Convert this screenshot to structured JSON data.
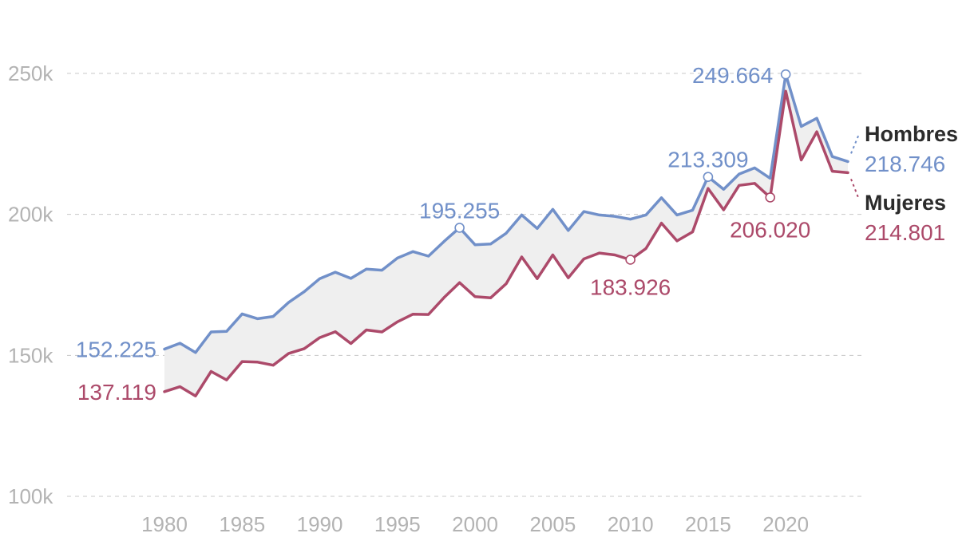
{
  "chart_data": {
    "type": "line",
    "title": "",
    "xlabel": "",
    "ylabel": "",
    "ylim": [
      100000,
      250000
    ],
    "xlim": [
      1980,
      2024
    ],
    "y_ticks": [
      {
        "value": 100000,
        "label": "100k"
      },
      {
        "value": 150000,
        "label": "150k"
      },
      {
        "value": 200000,
        "label": "200k"
      },
      {
        "value": 250000,
        "label": "250k"
      }
    ],
    "x_ticks": [
      {
        "value": 1980,
        "label": "1980"
      },
      {
        "value": 1985,
        "label": "1985"
      },
      {
        "value": 1990,
        "label": "1990"
      },
      {
        "value": 1995,
        "label": "1995"
      },
      {
        "value": 2000,
        "label": "2000"
      },
      {
        "value": 2005,
        "label": "2005"
      },
      {
        "value": 2010,
        "label": "2010"
      },
      {
        "value": 2015,
        "label": "2015"
      },
      {
        "value": 2020,
        "label": "2020"
      }
    ],
    "grid": true,
    "x": [
      1980,
      1981,
      1982,
      1983,
      1984,
      1985,
      1986,
      1987,
      1988,
      1989,
      1990,
      1991,
      1992,
      1993,
      1994,
      1995,
      1996,
      1997,
      1998,
      1999,
      2000,
      2001,
      2002,
      2003,
      2004,
      2005,
      2006,
      2007,
      2008,
      2009,
      2010,
      2011,
      2012,
      2013,
      2014,
      2015,
      2016,
      2017,
      2018,
      2019,
      2020,
      2021,
      2022,
      2023,
      2024
    ],
    "series": [
      {
        "name": "Hombres",
        "color": "#7190c9",
        "last_label": "218.746",
        "values": [
          152225,
          154300,
          151000,
          158300,
          158500,
          164700,
          163000,
          163800,
          168800,
          172600,
          177200,
          179500,
          177300,
          180600,
          180200,
          184500,
          186800,
          185200,
          190400,
          195255,
          189200,
          189500,
          193300,
          199800,
          195000,
          201800,
          194300,
          201000,
          199800,
          199300,
          198300,
          199800,
          205900,
          199800,
          201500,
          213309,
          208900,
          214300,
          216500,
          212800,
          249664,
          231200,
          234100,
          220500,
          218746
        ]
      },
      {
        "name": "Mujeres",
        "color": "#ac4a6a",
        "last_label": "214.801",
        "values": [
          137119,
          138900,
          135600,
          144300,
          141300,
          147800,
          147600,
          146500,
          150700,
          152400,
          156300,
          158400,
          154200,
          159000,
          158300,
          161900,
          164600,
          164500,
          170500,
          175800,
          170800,
          170400,
          175400,
          184900,
          177200,
          185600,
          177500,
          184200,
          186300,
          185600,
          183926,
          187900,
          196900,
          190600,
          193800,
          209200,
          201600,
          210300,
          211000,
          206020,
          243700,
          219300,
          229300,
          215300,
          214801
        ]
      }
    ],
    "annotations": [
      {
        "series": "Hombres",
        "x": 1980,
        "value": 152225,
        "label": "152.225",
        "marker": false
      },
      {
        "series": "Mujeres",
        "x": 1980,
        "value": 137119,
        "label": "137.119",
        "marker": false
      },
      {
        "series": "Hombres",
        "x": 1999,
        "value": 195255,
        "label": "195.255",
        "marker": true
      },
      {
        "series": "Mujeres",
        "x": 2010,
        "value": 183926,
        "label": "183.926",
        "marker": true
      },
      {
        "series": "Hombres",
        "x": 2015,
        "value": 213309,
        "label": "213.309",
        "marker": true
      },
      {
        "series": "Mujeres",
        "x": 2019,
        "value": 206020,
        "label": "206.020",
        "marker": true
      },
      {
        "series": "Hombres",
        "x": 2020,
        "value": 249664,
        "label": "249.664",
        "marker": true
      }
    ],
    "band_color": "#efefef"
  }
}
